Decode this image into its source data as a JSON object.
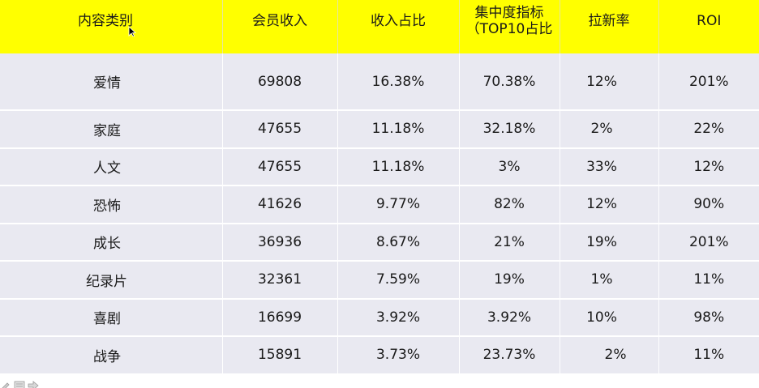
{
  "table": {
    "headers": {
      "category": "内容类别",
      "member_income": "会员收入",
      "income_share": "收入占比",
      "concentration_line1": "集中度指标",
      "concentration_line2": "（TOP10占比",
      "new_user_rate": "拉新率",
      "roi": "ROI"
    },
    "rows": [
      {
        "category": "爱情",
        "member_income": "69808",
        "income_share": "16.38%",
        "concentration": "70.38%",
        "new_user_rate": "12%",
        "roi": "201%"
      },
      {
        "category": "家庭",
        "member_income": "47655",
        "income_share": "11.18%",
        "concentration": "32.18%",
        "new_user_rate": "2%",
        "roi": "22%"
      },
      {
        "category": "人文",
        "member_income": "47655",
        "income_share": "11.18%",
        "concentration": "3%",
        "new_user_rate": "33%",
        "roi": "12%"
      },
      {
        "category": "恐怖",
        "member_income": "41626",
        "income_share": "9.77%",
        "concentration": "82%",
        "new_user_rate": "12%",
        "roi": "90%"
      },
      {
        "category": "成长",
        "member_income": "36936",
        "income_share": "8.67%",
        "concentration": "21%",
        "new_user_rate": "19%",
        "roi": "201%"
      },
      {
        "category": "纪录片",
        "member_income": "32361",
        "income_share": "7.59%",
        "concentration": "19%",
        "new_user_rate": "1%",
        "roi": "11%"
      },
      {
        "category": "喜剧",
        "member_income": "16699",
        "income_share": "3.92%",
        "concentration": "3.92%",
        "new_user_rate": "10%",
        "roi": "98%"
      },
      {
        "category": "战争",
        "member_income": "15891",
        "income_share": "3.73%",
        "concentration": "23.73%",
        "new_user_rate": "2%",
        "roi": "11%"
      }
    ]
  },
  "colors": {
    "header_background": "#ffff00",
    "row_background": "#e9e9f1",
    "text": "#1a1a1a"
  },
  "icons": [
    "mouse-cursor-icon",
    "pen-icon",
    "slide-icon",
    "next-arrow-icon"
  ]
}
